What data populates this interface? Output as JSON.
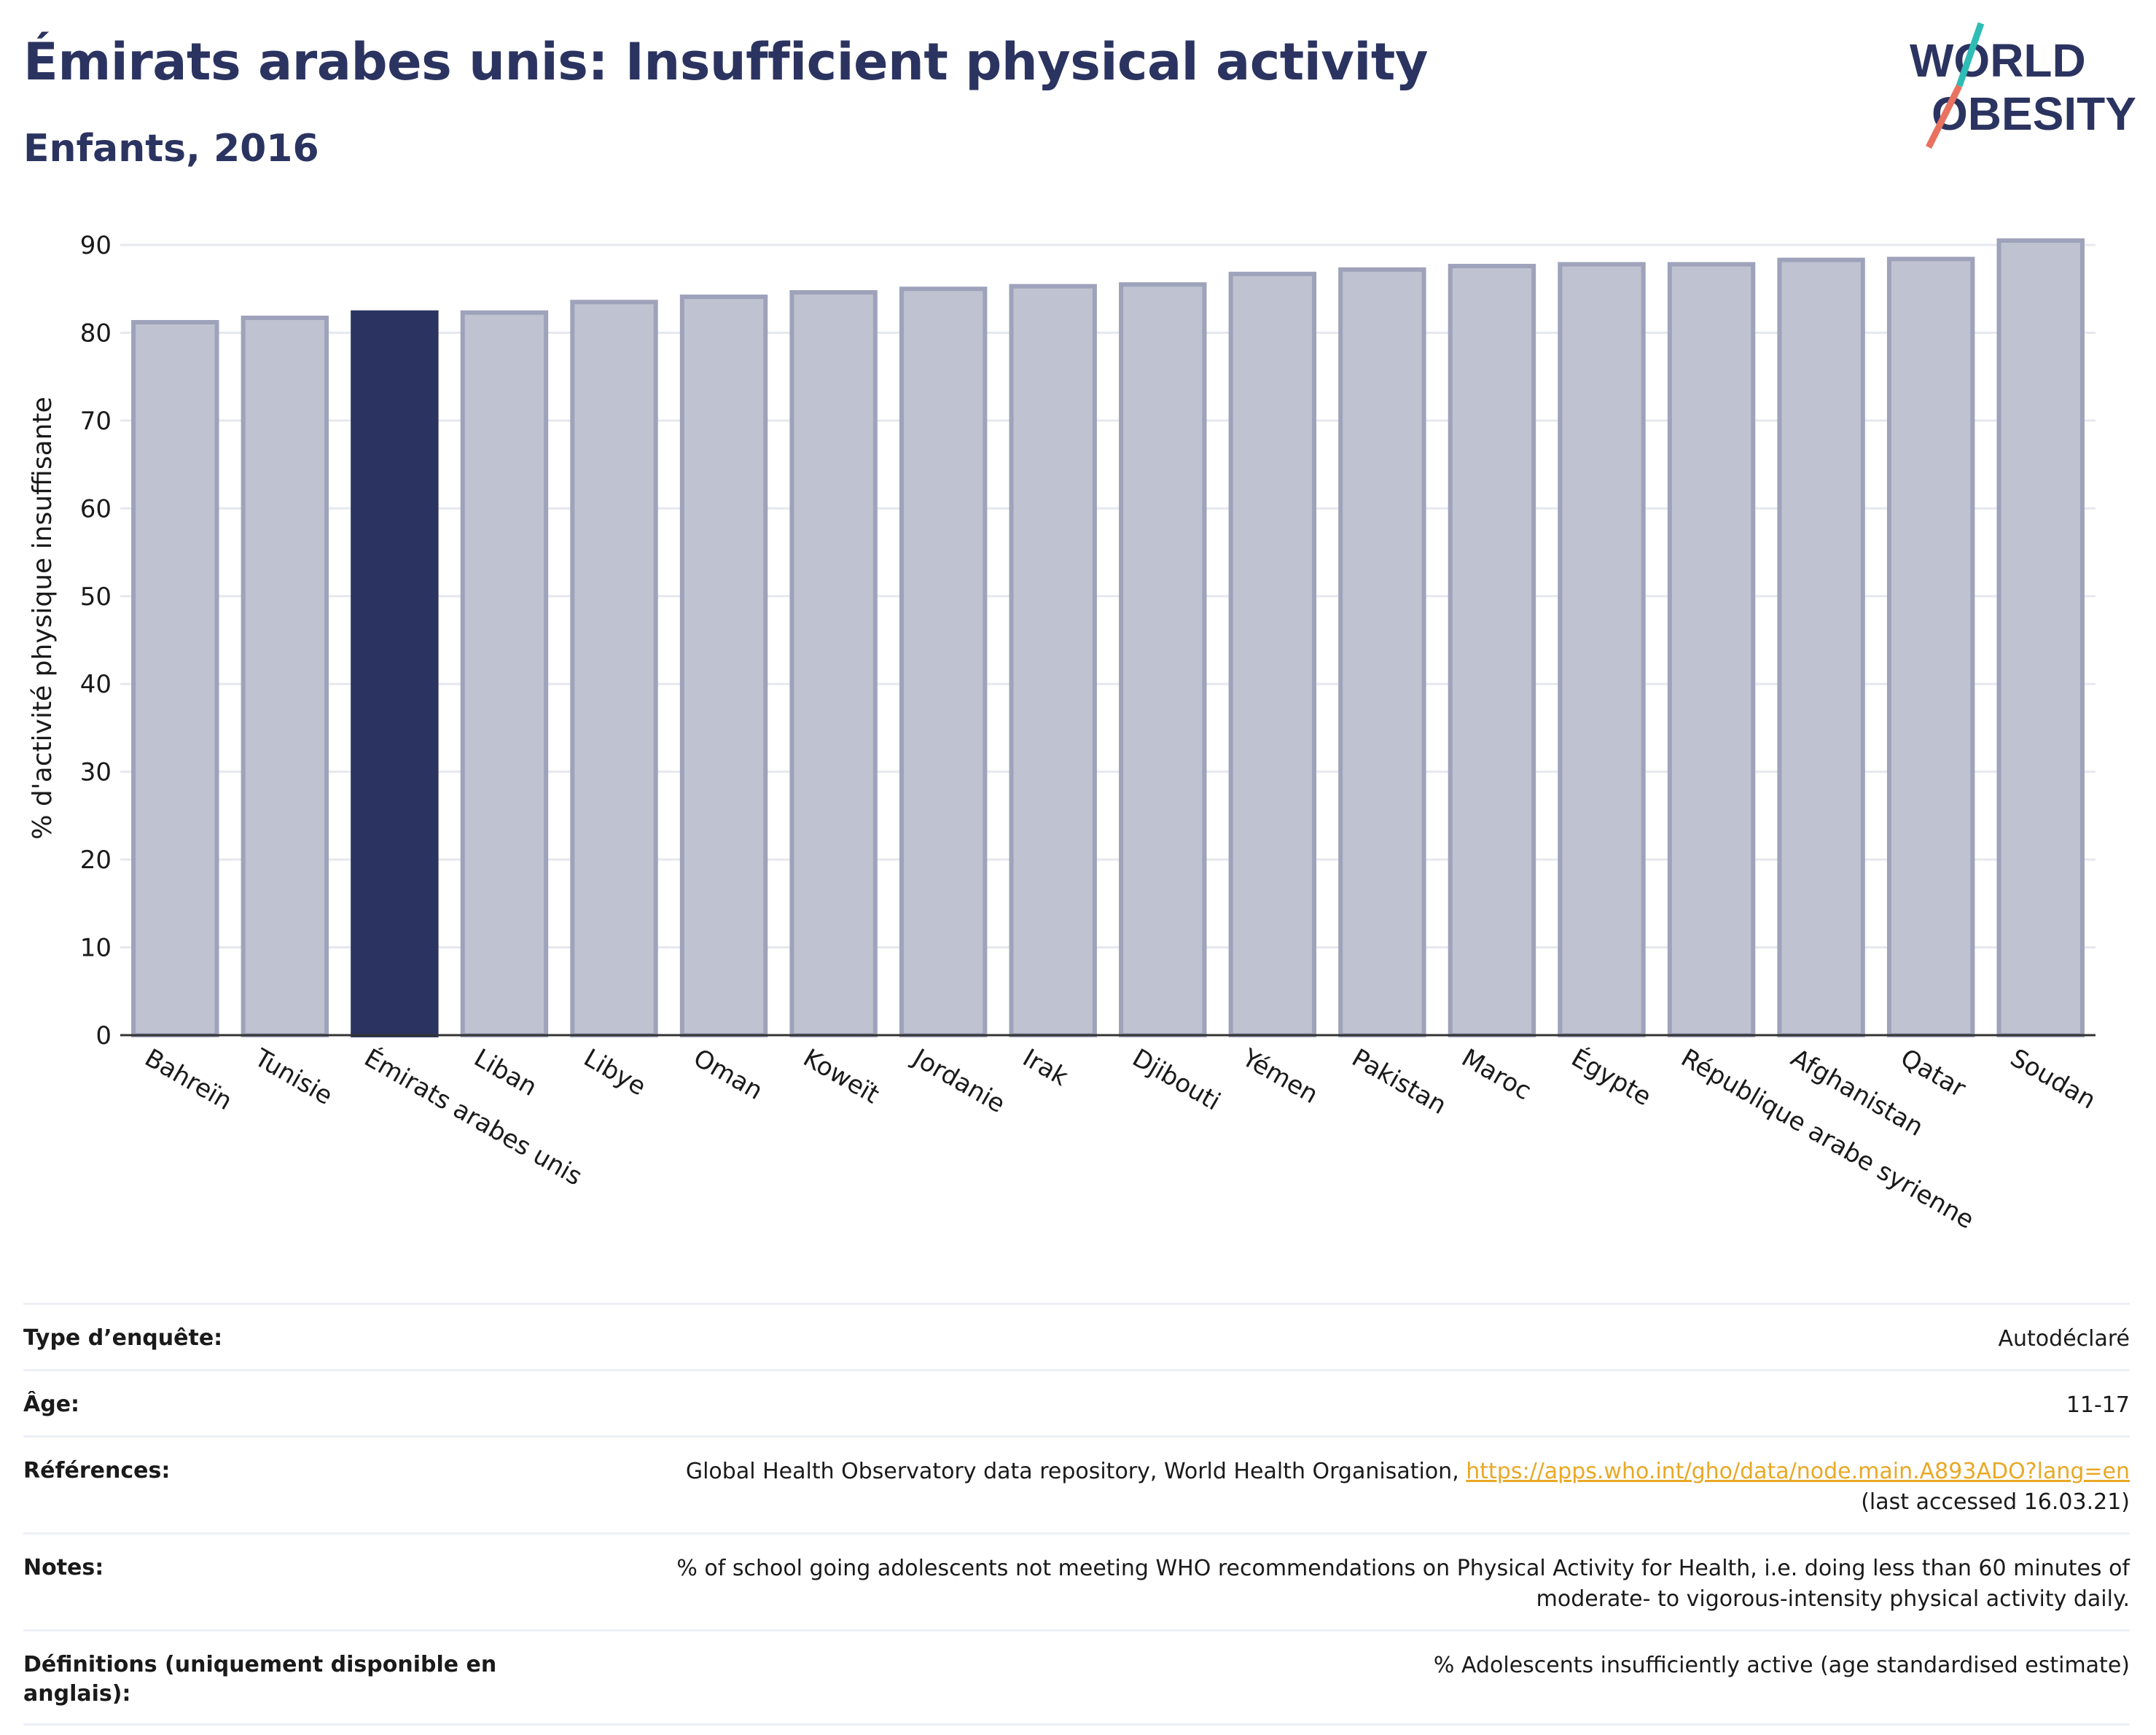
{
  "header": {
    "title": "Émirats arabes unis: Insufficient physical activity",
    "subtitle": "Enfants, 2016",
    "logo_line1": "WORLD",
    "logo_line2": "OBESITY"
  },
  "colors": {
    "highlight": "#2b3460",
    "bar_fill": "#bfc2d0",
    "bar_stroke": "#9ea2ba",
    "title": "#2b3460",
    "link": "#e9a825",
    "logo_teal": "#2ebdb5",
    "logo_coral": "#e8725f"
  },
  "chart_data": {
    "type": "bar",
    "ylabel": "% d'activité physique insuffisante",
    "ylim": [
      0,
      90
    ],
    "yticks": [
      0,
      10,
      20,
      30,
      40,
      50,
      60,
      70,
      80,
      90
    ],
    "grid": true,
    "highlight": "Émirats arabes unis",
    "categories": [
      "Bahreïn",
      "Tunisie",
      "Émirats arabes unis",
      "Liban",
      "Libye",
      "Oman",
      "Koweït",
      "Jordanie",
      "Irak",
      "Djibouti",
      "Yémen",
      "Pakistan",
      "Maroc",
      "Égypte",
      "République arabe syrienne",
      "Afghanistan",
      "Qatar",
      "Soudan"
    ],
    "values": [
      81.2,
      81.7,
      82.3,
      82.3,
      83.5,
      84.1,
      84.6,
      85.0,
      85.3,
      85.5,
      86.7,
      87.2,
      87.6,
      87.8,
      87.8,
      88.3,
      88.4,
      90.5
    ]
  },
  "footer": {
    "rows": [
      {
        "label": "Type d’enquête:",
        "value": "Autodéclaré"
      },
      {
        "label": "Âge:",
        "value": "11-17"
      },
      {
        "label": "Références:",
        "value": "Global Health Observatory data repository, World Health Organisation, ",
        "link": "https://apps.who.int/gho/data/node.main.A893ADO?lang=en",
        "value2": "(last accessed 16.03.21)"
      },
      {
        "label": "Notes:",
        "value": "% of school going adolescents not meeting WHO recommendations on Physical Activity for Health, i.e. doing less than 60 minutes of",
        "value2": "moderate- to vigorous-intensity physical activity daily."
      },
      {
        "label": "Définitions (uniquement disponible en anglais):",
        "value": "% Adolescents insufficiently active (age standardised estimate)"
      }
    ]
  }
}
